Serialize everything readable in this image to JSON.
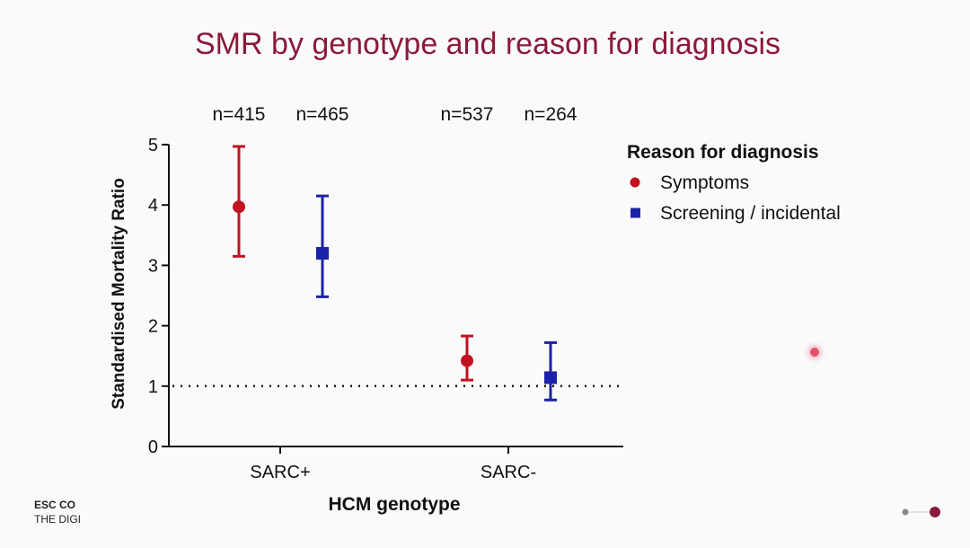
{
  "slide": {
    "footer_line1": "ESC CO",
    "footer_line2": "THE DIGI"
  },
  "colors": {
    "title": "#8b1a3a",
    "symptoms": "#c1121f",
    "screening": "#1c22a8",
    "nav_active": "#8b1a3a",
    "nav_inactive": "#888888"
  },
  "chart_data": {
    "type": "scatter",
    "title": "SMR by genotype and reason for diagnosis",
    "xlabel": "HCM genotype",
    "ylabel": "Standardised Mortality Ratio",
    "categories": [
      "SARC+",
      "SARC-"
    ],
    "ylim": [
      0,
      5
    ],
    "yticks": [
      0,
      1,
      2,
      3,
      4,
      5
    ],
    "reference_line": 1,
    "legend_title": "Reason for diagnosis",
    "legend_position": "top-right",
    "series": [
      {
        "name": "Symptoms",
        "marker": "circle",
        "color": "#c1121f",
        "values": [
          3.97,
          1.42
        ],
        "ci_low": [
          3.15,
          1.1
        ],
        "ci_high": [
          4.97,
          1.83
        ],
        "n_labels": [
          "n=415",
          "n=537"
        ]
      },
      {
        "name": "Screening / incidental",
        "marker": "square",
        "color": "#1c22a8",
        "values": [
          3.2,
          1.14
        ],
        "ci_low": [
          2.48,
          0.77
        ],
        "ci_high": [
          4.15,
          1.72
        ],
        "n_labels": [
          "n=465",
          "n=264"
        ]
      }
    ]
  }
}
